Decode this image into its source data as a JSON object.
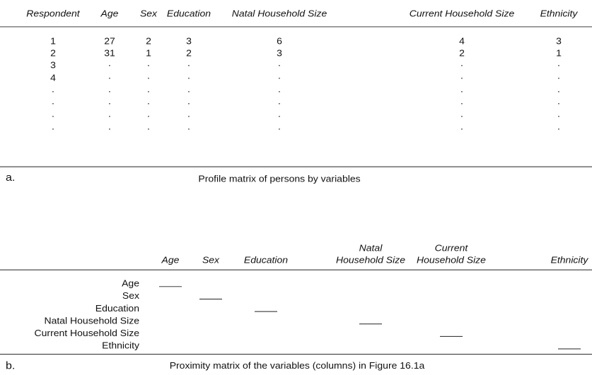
{
  "table_a": {
    "headers": [
      "Respondent",
      "Age",
      "Sex",
      "Education",
      "Natal Household Size",
      "Current Household Size",
      "Ethnicity"
    ],
    "rows": [
      [
        1,
        27,
        2,
        3,
        6,
        4,
        3
      ],
      [
        2,
        31,
        1,
        2,
        3,
        2,
        1
      ],
      [
        3,
        "·",
        "·",
        "·",
        "·",
        "·",
        "·"
      ],
      [
        4,
        "·",
        "·",
        "·",
        "·",
        "·",
        "·"
      ],
      [
        "·",
        "·",
        "·",
        "·",
        "·",
        "·",
        "·"
      ],
      [
        "·",
        "·",
        "·",
        "·",
        "·",
        "·",
        "·"
      ],
      [
        "·",
        "·",
        "·",
        "·",
        "·",
        "·",
        "·"
      ],
      [
        "·",
        "·",
        "·",
        "·",
        "·",
        "·",
        "·"
      ]
    ],
    "label": "a.",
    "caption": "Profile matrix of persons by variables"
  },
  "table_b": {
    "headers": [
      [
        "Age"
      ],
      [
        "Sex"
      ],
      [
        "Education"
      ],
      [
        "Natal",
        "Household Size"
      ],
      [
        "Current",
        "Household Size"
      ],
      [
        "Ethnicity"
      ]
    ],
    "row_labels": [
      "Age",
      "Sex",
      "Education",
      "Natal Household Size",
      "Current Household Size",
      "Ethnicity"
    ],
    "label": "b.",
    "caption": "Proximity matrix of the variables (columns) in Figure 16.1a"
  }
}
